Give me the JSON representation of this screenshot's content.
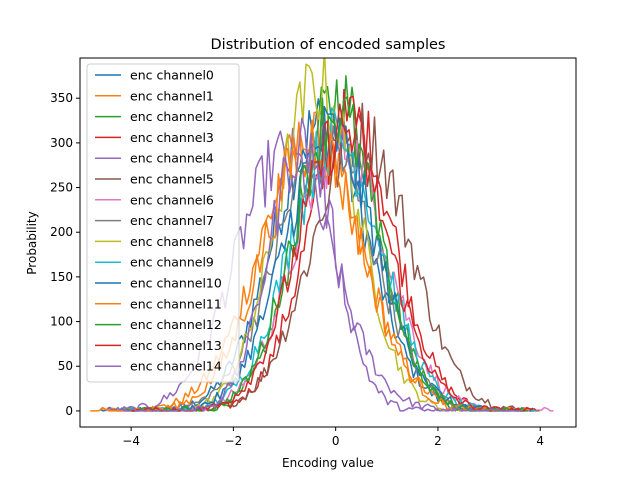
{
  "chart_data": {
    "type": "line",
    "title": "Distribution of encoded samples",
    "xlabel": "Encoding value",
    "ylabel": "Probability",
    "xlim": [
      -5.0,
      4.7
    ],
    "ylim": [
      -18,
      395
    ],
    "xticks": [
      -4,
      -2,
      0,
      2,
      4
    ],
    "yticks": [
      0,
      50,
      100,
      150,
      200,
      250,
      300,
      350
    ],
    "legend_position": "top-left",
    "grid": false,
    "series": [
      {
        "name": "enc channel0",
        "color": "#1f77b4",
        "mu": -0.3,
        "sigma": 0.92,
        "peak": 320,
        "xmin": -4.6,
        "xmax": 3.9
      },
      {
        "name": "enc channel1",
        "color": "#ff7f0e",
        "mu": -0.5,
        "sigma": 1.0,
        "peak": 300,
        "xmin": -4.8,
        "xmax": 3.6
      },
      {
        "name": "enc channel2",
        "color": "#2ca02c",
        "mu": 0.05,
        "sigma": 0.8,
        "peak": 350,
        "xmin": -4.0,
        "xmax": 3.7
      },
      {
        "name": "enc channel3",
        "color": "#d62728",
        "mu": 0.3,
        "sigma": 0.85,
        "peak": 325,
        "xmin": -3.8,
        "xmax": 4.0
      },
      {
        "name": "enc channel4",
        "color": "#9467bd",
        "mu": -1.0,
        "sigma": 0.95,
        "peak": 285,
        "xmin": -4.5,
        "xmax": 3.6
      },
      {
        "name": "enc channel5",
        "color": "#8c564b",
        "mu": 0.5,
        "sigma": 0.95,
        "peak": 310,
        "xmin": -3.2,
        "xmax": 3.9
      },
      {
        "name": "enc channel6",
        "color": "#e377c2",
        "mu": 0.1,
        "sigma": 0.9,
        "peak": 300,
        "xmin": -3.6,
        "xmax": 4.3
      },
      {
        "name": "enc channel7",
        "color": "#7f7f7f",
        "mu": -0.2,
        "sigma": 0.95,
        "peak": 300,
        "xmin": -4.3,
        "xmax": 4.0
      },
      {
        "name": "enc channel8",
        "color": "#bcbd22",
        "mu": -0.35,
        "sigma": 0.8,
        "peak": 365,
        "xmin": -4.0,
        "xmax": 3.5
      },
      {
        "name": "enc channel9",
        "color": "#17becf",
        "mu": 0.0,
        "sigma": 0.9,
        "peak": 305,
        "xmin": -4.1,
        "xmax": 3.9
      },
      {
        "name": "enc channel10",
        "color": "#1f77b4",
        "mu": -0.1,
        "sigma": 0.9,
        "peak": 310,
        "xmin": -4.3,
        "xmax": 3.9
      },
      {
        "name": "enc channel11",
        "color": "#ff7f0e",
        "mu": -0.45,
        "sigma": 0.95,
        "peak": 305,
        "xmin": -4.6,
        "xmax": 3.8
      },
      {
        "name": "enc channel12",
        "color": "#2ca02c",
        "mu": 0.0,
        "sigma": 0.82,
        "peak": 335,
        "xmin": -4.1,
        "xmax": 3.8
      },
      {
        "name": "enc channel13",
        "color": "#d62728",
        "mu": 0.15,
        "sigma": 0.88,
        "peak": 315,
        "xmin": -4.0,
        "xmax": 3.9
      },
      {
        "name": "enc channel14",
        "color": "#9467bd",
        "mu": -0.65,
        "sigma": 0.65,
        "peak": 300,
        "xmin": -4.2,
        "xmax": 3.7
      }
    ]
  }
}
